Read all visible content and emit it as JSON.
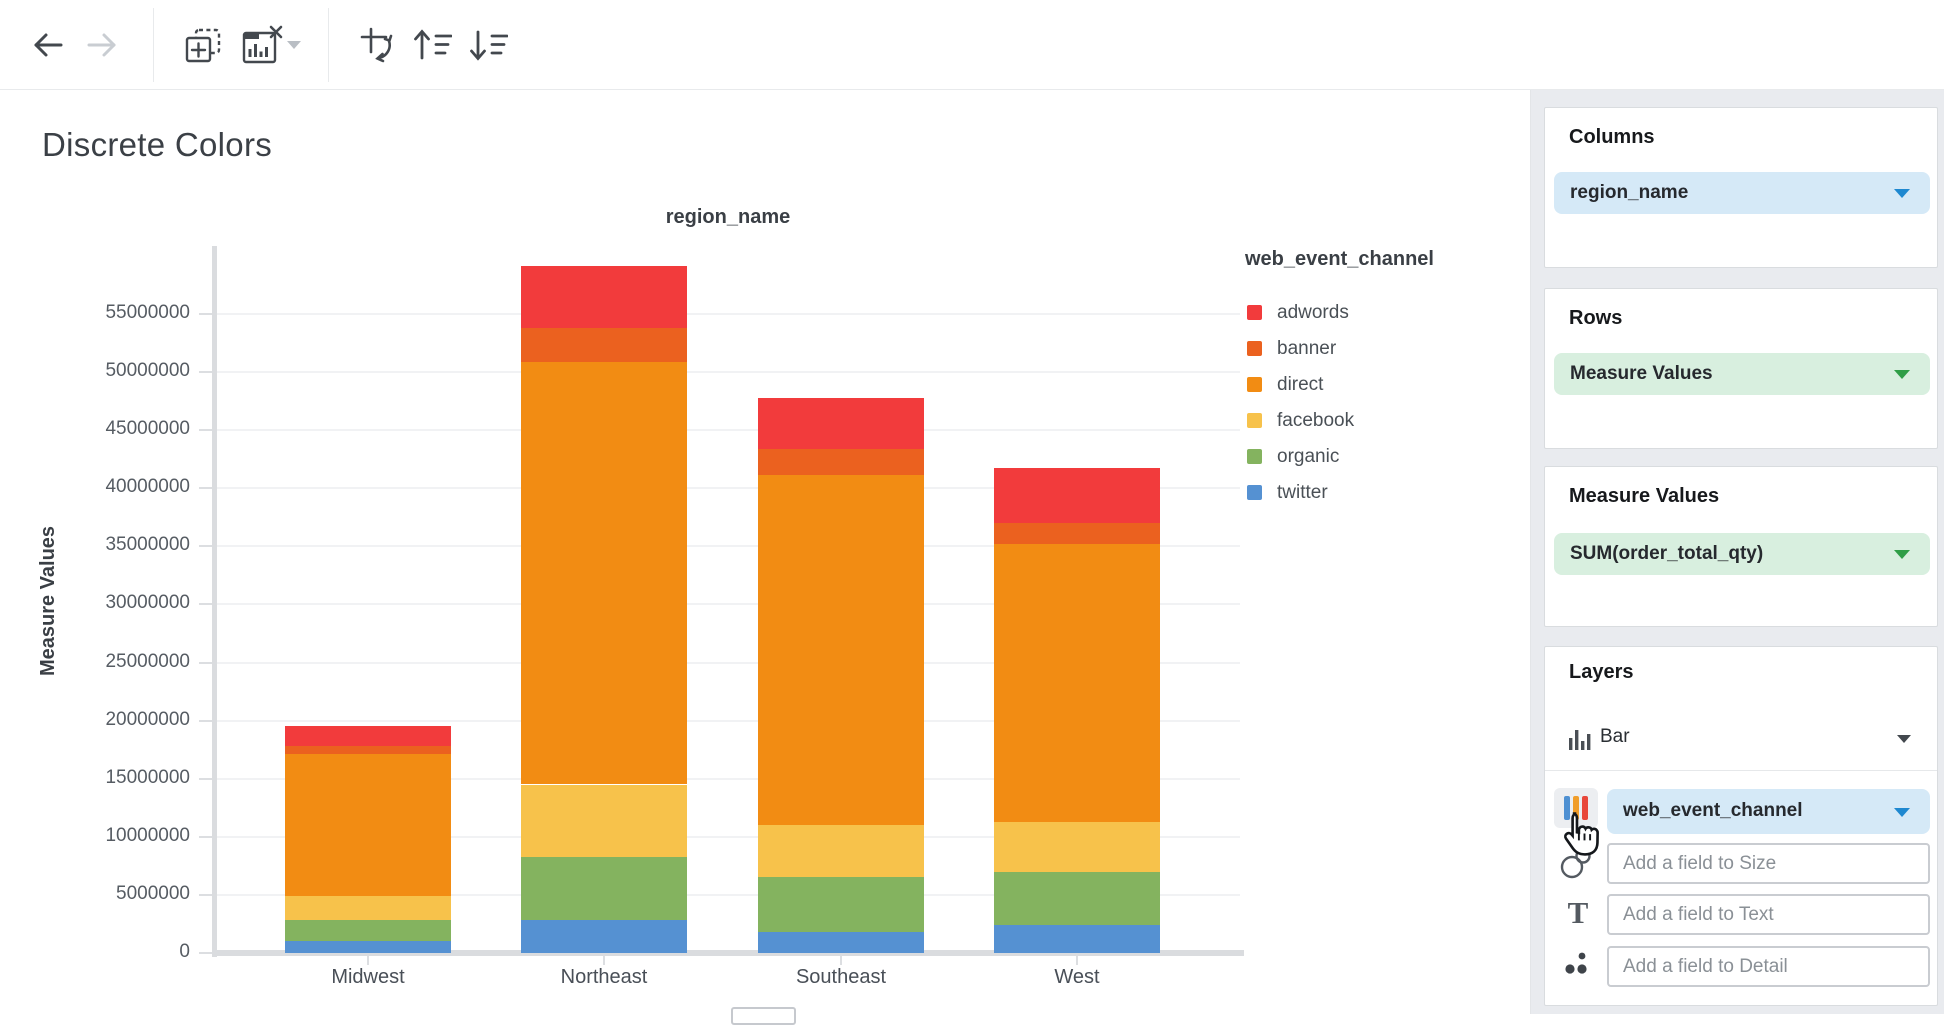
{
  "toolbar": {
    "icons": [
      "back-icon",
      "forward-icon",
      "add-chart-icon",
      "clear-chart-icon",
      "dropdown-caret-icon",
      "swap-axes-icon",
      "sort-ascending-icon",
      "sort-descending-icon"
    ]
  },
  "chart": {
    "page_title": "Discrete Colors"
  },
  "chart_data": {
    "type": "bar",
    "stacked": true,
    "title": "region_name",
    "xlabel": "region_name",
    "ylabel": "Measure Values",
    "legend_title": "web_event_channel",
    "legend_position": "right",
    "grid": true,
    "ylim": [
      0,
      60000000
    ],
    "yticks": [
      0,
      5000000,
      10000000,
      15000000,
      20000000,
      25000000,
      30000000,
      35000000,
      40000000,
      45000000,
      50000000,
      55000000
    ],
    "categories": [
      "Midwest",
      "Northeast",
      "Southeast",
      "West"
    ],
    "series": [
      {
        "name": "twitter",
        "color": "#5591d2",
        "values": [
          1000000,
          2800000,
          1800000,
          2400000
        ]
      },
      {
        "name": "organic",
        "color": "#84b35f",
        "values": [
          1800000,
          5500000,
          4700000,
          4600000
        ]
      },
      {
        "name": "facebook",
        "color": "#f7c24b",
        "values": [
          2100000,
          6200000,
          4500000,
          4300000
        ]
      },
      {
        "name": "direct",
        "color": "#f28c13",
        "values": [
          12200000,
          36400000,
          30100000,
          23900000
        ]
      },
      {
        "name": "banner",
        "color": "#eb611f",
        "values": [
          700000,
          2900000,
          2300000,
          1800000
        ]
      },
      {
        "name": "adwords",
        "color": "#f23b3c",
        "values": [
          1700000,
          5300000,
          4350000,
          4750000
        ]
      }
    ],
    "legend_order": [
      "adwords",
      "banner",
      "direct",
      "facebook",
      "organic",
      "twitter"
    ],
    "stack_totals": [
      19500000,
      59100000,
      47750000,
      41750000
    ]
  },
  "panel": {
    "columns": {
      "header": "Columns",
      "field": "region_name"
    },
    "rows": {
      "header": "Rows",
      "field": "Measure Values"
    },
    "measure_values": {
      "header": "Measure Values",
      "field": "SUM(order_total_qty)"
    },
    "layers": {
      "header": "Layers",
      "layer_type": "Bar",
      "color_field": "web_event_channel",
      "size_placeholder": "Add a field to Size",
      "text_placeholder": "Add a field to Text",
      "detail_placeholder": "Add a field to Detail",
      "icons": [
        "bar-layer-icon",
        "color-icon",
        "size-icon",
        "text-icon",
        "detail-icon"
      ]
    },
    "accent_colors": {
      "dimension_blue": "#d5e9f7",
      "measure_green": "#d8efdf",
      "caret_blue": "#1e88d0",
      "caret_green": "#2f9e47"
    }
  }
}
